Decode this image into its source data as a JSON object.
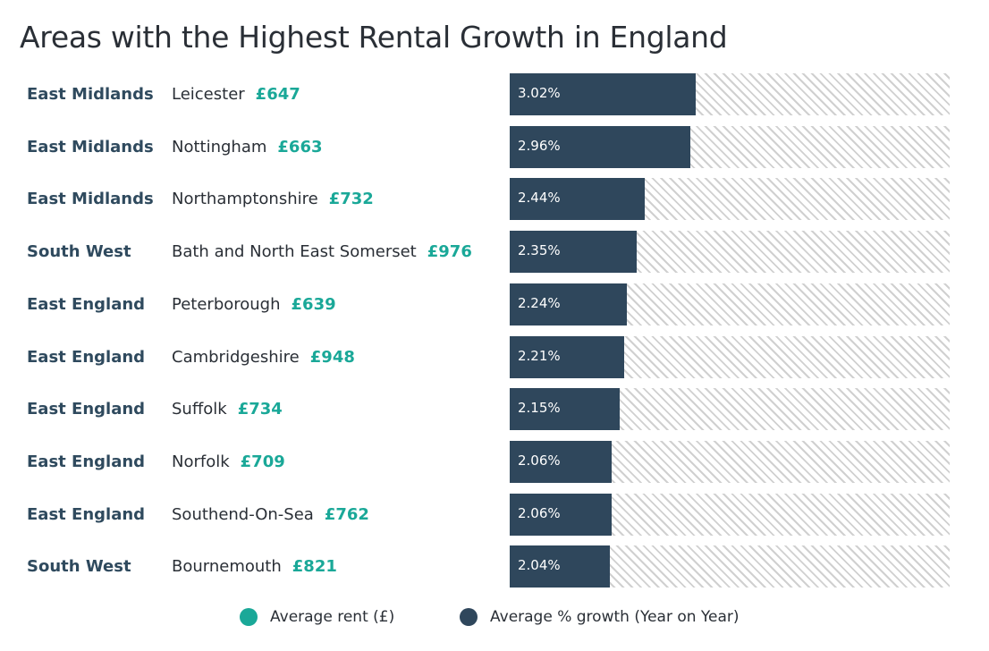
{
  "chart_data": {
    "type": "bar",
    "orientation": "horizontal",
    "title": "Areas with the Highest Rental Growth in England",
    "xlim": [
      0.9,
      5.92
    ],
    "rows": [
      {
        "region": "East Midlands",
        "place": "Leicester",
        "rent": "£647",
        "growth": 3.02,
        "label": "3.02%"
      },
      {
        "region": "East Midlands",
        "place": "Nottingham",
        "rent": "£663",
        "growth": 2.96,
        "label": "2.96%"
      },
      {
        "region": "East Midlands",
        "place": "Northamptonshire",
        "rent": "£732",
        "growth": 2.44,
        "label": "2.44%"
      },
      {
        "region": "South West",
        "place": "Bath and North East Somerset",
        "rent": "£976",
        "growth": 2.35,
        "label": "2.35%"
      },
      {
        "region": "East England",
        "place": "Peterborough",
        "rent": "£639",
        "growth": 2.24,
        "label": "2.24%"
      },
      {
        "region": "East England",
        "place": "Cambridgeshire",
        "rent": "£948",
        "growth": 2.21,
        "label": "2.21%"
      },
      {
        "region": "East England",
        "place": "Suffolk",
        "rent": "£734",
        "growth": 2.15,
        "label": "2.15%"
      },
      {
        "region": "East England",
        "place": "Norfolk",
        "rent": "£709",
        "growth": 2.06,
        "label": "2.06%"
      },
      {
        "region": "East England",
        "place": "Southend-On-Sea",
        "rent": "£762",
        "growth": 2.06,
        "label": "2.06%"
      },
      {
        "region": "South West",
        "place": "Bournemouth",
        "rent": "£821",
        "growth": 2.04,
        "label": "2.04%"
      }
    ],
    "legend": [
      {
        "label": "Average rent (£)",
        "color": "#1aa898"
      },
      {
        "label": "Average % growth (Year on Year)",
        "color": "#2f475c"
      }
    ],
    "legend_position": "bottom"
  }
}
